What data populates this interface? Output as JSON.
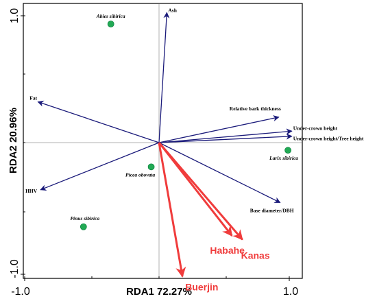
{
  "chart_data": {
    "type": "scatter",
    "subtype": "rda-biplot",
    "title": "",
    "xlabel": "RDA1 72.27%",
    "ylabel": "RDA2 20.96%",
    "xlim": [
      -1.05,
      1.05
    ],
    "ylim": [
      -1.07,
      1.07
    ],
    "x_ticks": [
      "-1.0",
      "1.0"
    ],
    "y_ticks": [
      "1.0",
      "-1.0"
    ],
    "zero_lines": true,
    "colors": {
      "trait_arrow": "#1a1a7a",
      "site_arrow": "#f03c3c",
      "species_point": "#22aa55",
      "axis": "#000000",
      "zero_line": "#b0b0b0"
    },
    "trait_arrows": [
      {
        "label": "Ash",
        "x": 0.06,
        "y": 1.02
      },
      {
        "label": "Fat",
        "x": -0.93,
        "y": 0.32
      },
      {
        "label": "Relative bark thickness",
        "x": 0.92,
        "y": 0.2
      },
      {
        "label": "Under-crown height",
        "x": 1.02,
        "y": 0.09
      },
      {
        "label": "Under-crown height/Tree height",
        "x": 1.02,
        "y": 0.05
      },
      {
        "label": "HHV",
        "x": -0.91,
        "y": -0.37
      },
      {
        "label": "Base diameter/DBH",
        "x": 0.93,
        "y": -0.47
      }
    ],
    "site_arrows": [
      {
        "label": "Habahe",
        "x": 0.56,
        "y": -0.73
      },
      {
        "label": "Kanas",
        "x": 0.64,
        "y": -0.76
      },
      {
        "label": "Buerjin",
        "x": 0.18,
        "y": -1.05
      }
    ],
    "species_points": [
      {
        "label": "Abies sibirica",
        "x": -0.37,
        "y": 0.93
      },
      {
        "label": "Larix sibirica",
        "x": 0.99,
        "y": -0.06
      },
      {
        "label": "Picea obovata",
        "x": -0.06,
        "y": -0.19
      },
      {
        "label": "Pinus sibirica",
        "x": -0.58,
        "y": -0.66
      }
    ]
  }
}
